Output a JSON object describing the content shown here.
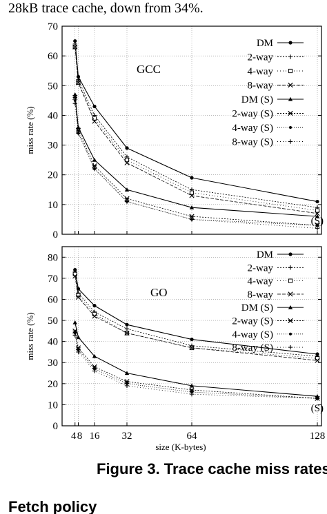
{
  "text": {
    "top_line": "28kB trace cache, down from 34%.",
    "caption": "Figure 3. Trace cache miss rates.",
    "bottom_line": "Fetch policy"
  },
  "chart_data": [
    {
      "type": "line",
      "annotation": "GCC",
      "ylabel": "miss rate (%)",
      "xlabel": "",
      "x": [
        4,
        8,
        16,
        32,
        64,
        128
      ],
      "xticks": [],
      "ylim": [
        0,
        70
      ],
      "yticks": [
        0,
        10,
        20,
        30,
        40,
        50,
        60,
        70
      ],
      "grid": true,
      "legend_position": "top-right",
      "right_annotation": "(S)",
      "series": [
        {
          "name": "DM",
          "values": [
            65,
            53,
            43,
            29,
            19,
            11
          ],
          "marker": "circle"
        },
        {
          "name": "2-way",
          "values": [
            64,
            52,
            40,
            26,
            15,
            9
          ],
          "marker": "plus"
        },
        {
          "name": "4-way",
          "values": [
            63,
            51,
            39,
            25,
            14,
            8
          ],
          "marker": "square"
        },
        {
          "name": "8-way",
          "values": [
            63,
            51,
            38,
            24,
            13,
            7
          ],
          "marker": "x"
        },
        {
          "name": "DM (S)",
          "values": [
            47,
            36,
            25,
            15,
            9,
            6
          ],
          "marker": "triangle"
        },
        {
          "name": "2-way (S)",
          "values": [
            46,
            35,
            23,
            12,
            6,
            3
          ],
          "marker": "star"
        },
        {
          "name": "4-way (S)",
          "values": [
            45,
            34,
            22,
            11,
            5,
            3
          ],
          "marker": "dot"
        },
        {
          "name": "8-way (S)",
          "values": [
            44,
            34,
            22,
            11,
            5,
            2
          ],
          "marker": "plus"
        }
      ]
    },
    {
      "type": "line",
      "annotation": "GO",
      "ylabel": "miss rate (%)",
      "xlabel": "size (K-bytes)",
      "x": [
        4,
        8,
        16,
        32,
        64,
        128
      ],
      "xticks": [
        "4",
        "8",
        "16",
        "32",
        "64",
        "128"
      ],
      "ylim": [
        0,
        85
      ],
      "yticks": [
        0,
        10,
        20,
        30,
        40,
        50,
        60,
        70,
        80
      ],
      "grid": true,
      "legend_position": "top-right",
      "right_annotation": "(S)",
      "series": [
        {
          "name": "DM",
          "values": [
            74,
            65,
            57,
            48,
            41,
            34
          ],
          "marker": "circle"
        },
        {
          "name": "2-way",
          "values": [
            73,
            63,
            54,
            46,
            38,
            33
          ],
          "marker": "plus"
        },
        {
          "name": "4-way",
          "values": [
            72,
            62,
            53,
            44,
            37,
            32
          ],
          "marker": "square"
        },
        {
          "name": "8-way",
          "values": [
            71,
            61,
            52,
            44,
            37,
            31
          ],
          "marker": "x"
        },
        {
          "name": "DM (S)",
          "values": [
            49,
            42,
            33,
            25,
            19,
            14
          ],
          "marker": "triangle"
        },
        {
          "name": "2-way (S)",
          "values": [
            45,
            37,
            28,
            21,
            17,
            13
          ],
          "marker": "star"
        },
        {
          "name": "4-way (S)",
          "values": [
            44,
            36,
            27,
            20,
            16,
            13
          ],
          "marker": "dot"
        },
        {
          "name": "8-way (S)",
          "values": [
            43,
            35,
            26,
            19,
            15,
            13
          ],
          "marker": "plus"
        }
      ]
    }
  ]
}
